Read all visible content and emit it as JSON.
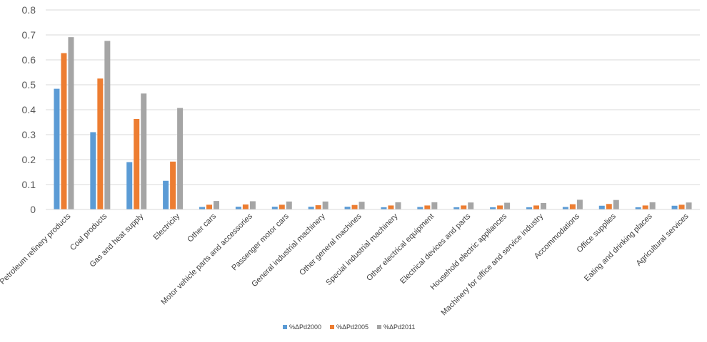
{
  "chart_data": {
    "type": "bar",
    "categories": [
      "Petroleum refinery products",
      "Coal products",
      "Gas and heat supply",
      "Electricity",
      "Other cars",
      "Motor vehicle parts and accessories",
      "Passenger motor cars",
      "General industrial machinery",
      "Other general machines",
      "Special industrial machinery",
      "Other electrical equipment",
      "Electrical devices and parts",
      "Household electric appliances",
      "Machinery for office and service industry",
      "Accommodations",
      "Office supplies",
      "Eating and drinking places",
      "Agricultural services"
    ],
    "series": [
      {
        "name": "%ΔPd2000",
        "color": "#5B9BD5",
        "values": [
          0.484,
          0.31,
          0.19,
          0.115,
          0.01,
          0.011,
          0.011,
          0.011,
          0.011,
          0.009,
          0.01,
          0.009,
          0.009,
          0.009,
          0.01,
          0.015,
          0.009,
          0.015
        ]
      },
      {
        "name": "%ΔPd2005",
        "color": "#ED7D31",
        "values": [
          0.627,
          0.525,
          0.363,
          0.192,
          0.019,
          0.02,
          0.019,
          0.017,
          0.018,
          0.016,
          0.016,
          0.016,
          0.016,
          0.016,
          0.021,
          0.022,
          0.016,
          0.019
        ]
      },
      {
        "name": "%ΔPd2011",
        "color": "#A5A5A5",
        "values": [
          0.691,
          0.676,
          0.465,
          0.407,
          0.034,
          0.033,
          0.032,
          0.032,
          0.031,
          0.029,
          0.029,
          0.028,
          0.027,
          0.026,
          0.039,
          0.038,
          0.029,
          0.028
        ]
      }
    ],
    "yticks": [
      "0",
      "0.1",
      "0.2",
      "0.3",
      "0.4",
      "0.5",
      "0.6",
      "0.7",
      "0.8"
    ],
    "ylim": [
      0,
      0.8
    ],
    "title": "",
    "xlabel": "",
    "ylabel": "",
    "grid": true,
    "gridColor": "#D9D9D9",
    "legendPosition": "bottom-center"
  }
}
